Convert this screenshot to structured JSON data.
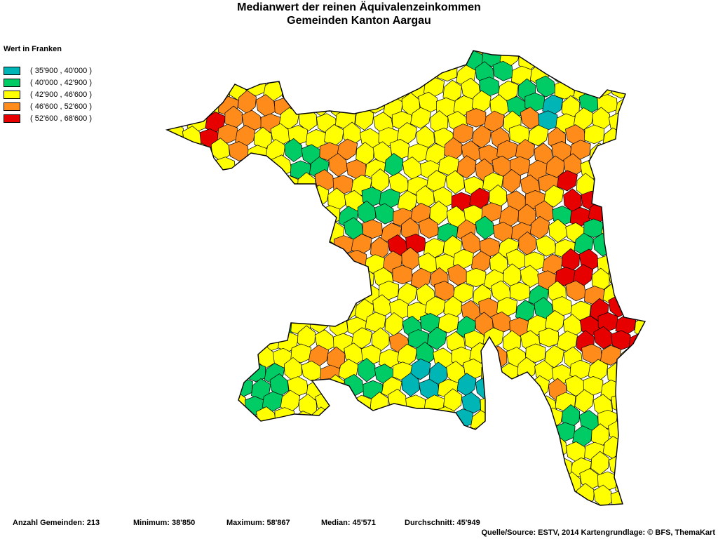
{
  "title": {
    "line1": "Medianwert der reinen Äquivalenzeinkommen",
    "line2": "Gemeinden Kanton Aargau"
  },
  "legend": {
    "title": "Wert in Franken",
    "items": [
      {
        "label": "( 35'900 , 40'000 )",
        "color": "#00b5b5"
      },
      {
        "label": "( 40'000 , 42'900 )",
        "color": "#00cc66"
      },
      {
        "label": "( 42'900 , 46'600 )",
        "color": "#ffff00"
      },
      {
        "label": "( 46'600 , 52'600 )",
        "color": "#ff8c1a"
      },
      {
        "label": "( 52'600 , 68'600 )",
        "color": "#e60000"
      }
    ]
  },
  "stats": {
    "count": "Anzahl Gemeinden: 213",
    "minimum": "Minimum: 38'850",
    "maximum": "Maximum: 58'867",
    "median": "Median: 45'571",
    "average": "Durchschnitt: 45'949"
  },
  "source": "Quelle/Source: ESTV, 2014 Kartengrundlage: © BFS, ThemaKart"
}
